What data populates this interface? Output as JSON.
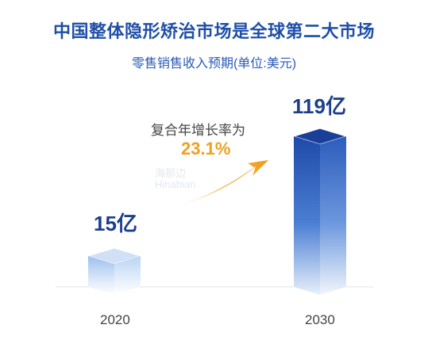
{
  "chart_data": {
    "type": "bar",
    "title": "中国整体隐形矫治市场是全球第二大市场",
    "subtitle": "零售销售收入预期(单位:美元)",
    "categories": [
      "2020",
      "2030"
    ],
    "values": [
      15,
      119
    ],
    "value_labels": [
      "15亿",
      "119亿"
    ],
    "annotation": {
      "text": "复合年增长率为",
      "value": "23.1%"
    },
    "watermark": [
      "海那边",
      "Hinabian"
    ],
    "colors": {
      "title": "#1f4fa8",
      "bar_2020": "#a9c8ef",
      "bar_2030": "#1f4fb0",
      "cagr": "#f0a020"
    }
  }
}
